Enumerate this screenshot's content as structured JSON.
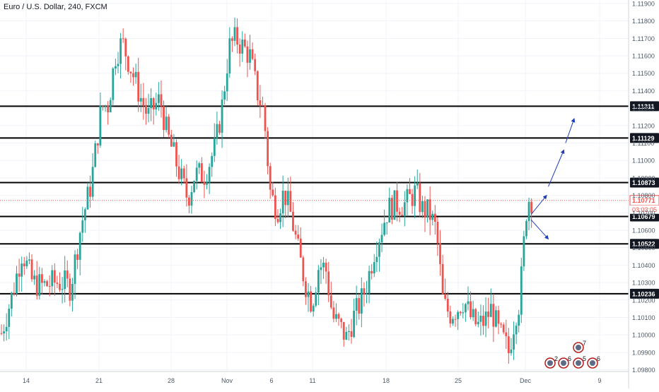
{
  "header": {
    "title": "Euro / U.S. Dollar, 240, FXCM"
  },
  "colors": {
    "up": "#26a69a",
    "down": "#ef5350",
    "grid": "#f0f3fa",
    "level": "#000000",
    "arrow": "#1e3db8",
    "axis_text": "#4f5966",
    "price_line": "#ef5350",
    "price_bg": "#ef5350",
    "level_bg": "#131722",
    "background": "#ffffff"
  },
  "chart_data": {
    "type": "candlestick",
    "title": "Euro / U.S. Dollar, 240, FXCM",
    "ylim": [
      1.0979,
      1.1192
    ],
    "y_ticks": [
      "1.11900",
      "1.11800",
      "1.11700",
      "1.11600",
      "1.11500",
      "1.11400",
      "1.11300",
      "1.11200",
      "1.11100",
      "1.11000",
      "1.10900",
      "1.10800",
      "1.10700",
      "1.10600",
      "1.10500",
      "1.10400",
      "1.10300",
      "1.10200",
      "1.10100",
      "1.10000",
      "1.09900",
      "1.09800"
    ],
    "x_ticks": [
      "14",
      "21",
      "28",
      "Nov",
      "6",
      "11",
      "18",
      "25",
      "Dec",
      "9"
    ],
    "horizontal_levels": [
      "1.11311",
      "1.11129",
      "1.10873",
      "1.10679",
      "1.10522",
      "1.10236"
    ],
    "current_price": "1.10771",
    "countdown": "03:03:05",
    "candle_count": 210,
    "path_anchors": [
      [
        0,
        1.1001
      ],
      [
        6,
        1.1022
      ],
      [
        12,
        1.1048
      ],
      [
        18,
        1.103
      ],
      [
        24,
        1.1028
      ],
      [
        30,
        1.103
      ],
      [
        36,
        1.103
      ],
      [
        40,
        1.1027
      ],
      [
        46,
        1.1062
      ],
      [
        52,
        1.1087
      ],
      [
        58,
        1.1131
      ],
      [
        62,
        1.1132
      ],
      [
        66,
        1.116
      ],
      [
        70,
        1.1168
      ],
      [
        75,
        1.1153
      ],
      [
        80,
        1.1138
      ],
      [
        85,
        1.1125
      ],
      [
        88,
        1.113
      ],
      [
        92,
        1.1135
      ],
      [
        96,
        1.1115
      ],
      [
        100,
        1.1103
      ],
      [
        104,
        1.109
      ],
      [
        108,
        1.1078
      ],
      [
        112,
        1.1092
      ],
      [
        118,
        1.1092
      ],
      [
        124,
        1.1108
      ],
      [
        128,
        1.1132
      ],
      [
        132,
        1.1165
      ],
      [
        136,
        1.117
      ],
      [
        140,
        1.1165
      ],
      [
        144,
        1.116
      ],
      [
        148,
        1.114
      ],
      [
        152,
        1.1128
      ],
      [
        156,
        1.108
      ],
      [
        160,
        1.1072
      ],
      [
        164,
        1.1082
      ],
      [
        168,
        1.1068
      ],
      [
        172,
        1.1048
      ],
      [
        176,
        1.103
      ],
      [
        180,
        1.1018
      ],
      [
        184,
        1.104
      ],
      [
        188,
        1.1038
      ],
      [
        192,
        1.101
      ],
      [
        196,
        1.1005
      ],
      [
        200,
        1.0998
      ],
      [
        204,
        1.101
      ],
      [
        208,
        1.1018
      ],
      [
        212,
        1.103
      ],
      [
        216,
        1.1048
      ],
      [
        220,
        1.106
      ],
      [
        224,
        1.1072
      ],
      [
        228,
        1.1075
      ],
      [
        234,
        1.1075
      ],
      [
        240,
        1.1082
      ],
      [
        244,
        1.1072
      ],
      [
        248,
        1.107
      ],
      [
        252,
        1.106
      ],
      [
        254,
        1.104
      ],
      [
        256,
        1.1018
      ],
      [
        260,
        1.1012
      ],
      [
        264,
        1.1015
      ],
      [
        268,
        1.102
      ],
      [
        272,
        1.101
      ],
      [
        276,
        1.1005
      ],
      [
        280,
        1.1008
      ],
      [
        284,
        1.1015
      ],
      [
        288,
        1.1002
      ],
      [
        292,
        1.0995
      ],
      [
        294,
        1.099
      ],
      [
        298,
        1.1012
      ],
      [
        300,
        1.1018
      ],
      [
        302,
        1.104
      ],
      [
        304,
        1.107
      ],
      [
        306,
        1.1079
      ],
      [
        308,
        1.1077
      ]
    ],
    "arrows": [
      {
        "from": [
          307,
          1.1069
        ],
        "to": [
          316,
          1.108
        ]
      },
      {
        "from": [
          317,
          1.1085
        ],
        "to": [
          326,
          1.1106
        ]
      },
      {
        "from": [
          327,
          1.111
        ],
        "to": [
          332,
          1.1124
        ]
      },
      {
        "from": [
          307,
          1.1066
        ],
        "to": [
          317,
          1.1055
        ]
      }
    ],
    "events": [
      {
        "label": "2"
      },
      {
        "label": "6"
      },
      {
        "label": "7"
      },
      {
        "label": "5"
      },
      {
        "label": "6"
      }
    ]
  }
}
